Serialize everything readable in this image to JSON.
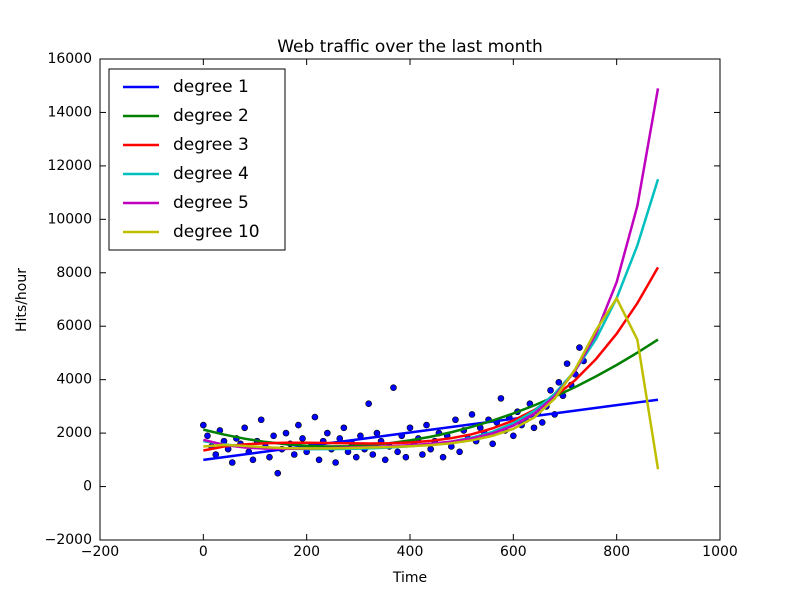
{
  "chart_data": {
    "type": "scatter",
    "title": "Web traffic over the last month",
    "xlabel": "Time",
    "ylabel": "Hits/hour",
    "xlim": [
      -200,
      1000
    ],
    "ylim": [
      -2000,
      16000
    ],
    "xticks": [
      {
        "value": -200,
        "label": "−200"
      },
      0,
      200,
      400,
      600,
      800,
      1000
    ],
    "yticks": [
      {
        "value": -2000,
        "label": "−2000"
      },
      0,
      2000,
      4000,
      6000,
      8000,
      10000,
      12000,
      14000,
      16000
    ],
    "legend": "upper left",
    "scatter": {
      "type": "scatter",
      "color": "#0000ff",
      "x": [
        0,
        8,
        16,
        24,
        32,
        40,
        48,
        56,
        64,
        72,
        80,
        88,
        96,
        104,
        112,
        120,
        128,
        136,
        144,
        152,
        160,
        168,
        176,
        184,
        192,
        200,
        208,
        216,
        224,
        232,
        240,
        248,
        256,
        264,
        272,
        280,
        288,
        296,
        304,
        312,
        320,
        328,
        336,
        344,
        352,
        360,
        368,
        376,
        384,
        392,
        400,
        408,
        416,
        424,
        432,
        440,
        448,
        456,
        464,
        472,
        480,
        488,
        496,
        504,
        512,
        520,
        528,
        536,
        544,
        552,
        560,
        568,
        576,
        584,
        592,
        600,
        608,
        616,
        624,
        632,
        640,
        648,
        656,
        664,
        672,
        680,
        688,
        696,
        704,
        712,
        720,
        728,
        736
      ],
      "values": [
        2300,
        1900,
        1500,
        1200,
        2100,
        1700,
        1400,
        900,
        1800,
        1600,
        2200,
        1300,
        1000,
        1700,
        2500,
        1500,
        1100,
        1900,
        500,
        1400,
        2000,
        1600,
        1200,
        2300,
        1800,
        1300,
        1500,
        2600,
        1000,
        1700,
        2000,
        1400,
        900,
        1800,
        2200,
        1300,
        1600,
        1100,
        1900,
        1400,
        3100,
        1200,
        2000,
        1700,
        1000,
        1500,
        3700,
        1300,
        1900,
        1100,
        2200,
        1600,
        1800,
        1200,
        2300,
        1400,
        1700,
        2000,
        1100,
        1900,
        1500,
        2500,
        1300,
        2100,
        1800,
        2700,
        1700,
        2200,
        2000,
        2500,
        1600,
        2400,
        3300,
        2100,
        2600,
        1900,
        2800,
        2300,
        2500,
        3100,
        2200,
        2800,
        2400,
        3000,
        3600,
        2700,
        3900,
        3400,
        4600,
        3800,
        4200,
        5200,
        4700
      ]
    },
    "fit_x": [
      0,
      40,
      80,
      120,
      160,
      200,
      240,
      280,
      320,
      360,
      400,
      440,
      480,
      520,
      560,
      600,
      640,
      680,
      720,
      760,
      800,
      840,
      880
    ],
    "series": [
      {
        "name": "degree 1",
        "type": "line",
        "color": "#0000ff",
        "values": [
          1000,
          1102,
          1205,
          1307,
          1409,
          1511,
          1614,
          1716,
          1818,
          1920,
          2023,
          2125,
          2227,
          2330,
          2432,
          2534,
          2636,
          2739,
          2841,
          2943,
          3046,
          3148,
          3250
        ]
      },
      {
        "name": "degree 2",
        "type": "line",
        "color": "#008000",
        "values": [
          2130,
          1945,
          1791,
          1670,
          1582,
          1525,
          1501,
          1509,
          1549,
          1622,
          1727,
          1864,
          2033,
          2235,
          2469,
          2735,
          3033,
          3364,
          3727,
          4122,
          4549,
          5009,
          5500
        ]
      },
      {
        "name": "degree 3",
        "type": "line",
        "color": "#ff0000",
        "values": [
          1350,
          1500,
          1580,
          1620,
          1640,
          1640,
          1630,
          1620,
          1610,
          1620,
          1650,
          1710,
          1810,
          1960,
          2180,
          2470,
          2860,
          3360,
          3990,
          4770,
          5720,
          6860,
          8200
        ]
      },
      {
        "name": "degree 4",
        "type": "line",
        "color": "#00bfbf",
        "values": [
          1700,
          1580,
          1500,
          1450,
          1420,
          1400,
          1400,
          1410,
          1430,
          1460,
          1510,
          1580,
          1680,
          1830,
          2050,
          2370,
          2830,
          3470,
          4350,
          5520,
          7050,
          9020,
          11500
        ]
      },
      {
        "name": "degree 5",
        "type": "line",
        "color": "#bf00bf",
        "values": [
          1750,
          1560,
          1460,
          1420,
          1410,
          1420,
          1440,
          1460,
          1480,
          1510,
          1550,
          1600,
          1680,
          1800,
          1990,
          2280,
          2720,
          3380,
          4340,
          5720,
          7650,
          10500,
          14900
        ]
      },
      {
        "name": "degree 10",
        "type": "line",
        "color": "#bfbf00",
        "values": [
          1500,
          1560,
          1520,
          1470,
          1440,
          1430,
          1430,
          1440,
          1460,
          1480,
          1510,
          1550,
          1620,
          1730,
          1900,
          2160,
          2580,
          3290,
          4400,
          5850,
          7040,
          5500,
          650
        ]
      }
    ]
  }
}
